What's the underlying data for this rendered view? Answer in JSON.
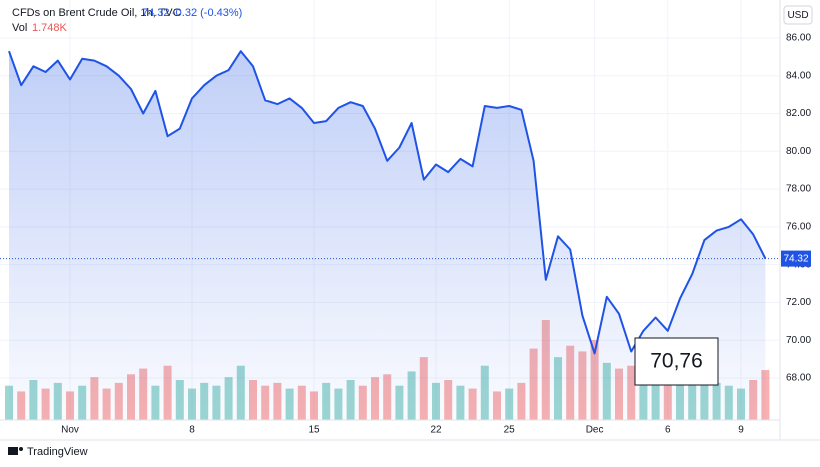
{
  "chart_data": {
    "type": "area",
    "title": "CFDs on Brent Crude Oil, 1h, TVC",
    "last_price": "74.32",
    "change": "-0.32 (-0.43%)",
    "currency": "USD",
    "annotation": "70,76",
    "brand": "TradingView",
    "categories": [
      null,
      null,
      null,
      null,
      null,
      "Nov",
      null,
      null,
      null,
      null,
      null,
      null,
      null,
      null,
      null,
      "8",
      null,
      null,
      null,
      null,
      null,
      null,
      null,
      null,
      null,
      "15",
      null,
      null,
      null,
      null,
      null,
      null,
      null,
      null,
      null,
      "22",
      null,
      null,
      null,
      null,
      null,
      "25",
      null,
      null,
      null,
      null,
      null,
      null,
      "Dec",
      null,
      null,
      null,
      null,
      null,
      "6",
      null,
      null,
      null,
      null,
      null,
      "9",
      null,
      null
    ],
    "series": [
      {
        "name": "Brent",
        "color": "#1e53e5",
        "values": [
          85.3,
          83.5,
          84.5,
          84.2,
          84.8,
          83.8,
          84.9,
          84.8,
          84.5,
          84.0,
          83.3,
          82.0,
          83.2,
          80.8,
          81.2,
          82.8,
          83.5,
          84.0,
          84.3,
          85.3,
          84.5,
          82.7,
          82.5,
          82.8,
          82.3,
          81.5,
          81.6,
          82.3,
          82.6,
          82.4,
          81.2,
          79.5,
          80.2,
          81.5,
          78.5,
          79.3,
          78.9,
          79.6,
          79.2,
          82.4,
          82.3,
          82.4,
          82.2,
          79.5,
          73.2,
          75.5,
          74.8,
          71.3,
          69.3,
          72.3,
          71.4,
          69.4,
          70.5,
          71.2,
          70.5,
          72.2,
          73.5,
          75.3,
          75.8,
          76.0,
          76.4,
          75.6,
          74.32
        ]
      }
    ],
    "volume": {
      "name": "Vol",
      "last_label": "1.748K",
      "up_color": "#26a69a",
      "down_color": "#ef5350",
      "values": [
        1.2,
        1.0,
        1.4,
        1.1,
        1.3,
        1.0,
        1.2,
        1.5,
        1.1,
        1.3,
        1.6,
        1.8,
        1.2,
        1.9,
        1.4,
        1.1,
        1.3,
        1.2,
        1.5,
        1.9,
        1.4,
        1.2,
        1.3,
        1.1,
        1.2,
        1.0,
        1.3,
        1.1,
        1.4,
        1.2,
        1.5,
        1.6,
        1.2,
        1.7,
        2.2,
        1.3,
        1.4,
        1.2,
        1.1,
        1.9,
        1.0,
        1.1,
        1.3,
        2.5,
        3.5,
        2.2,
        2.6,
        2.4,
        2.8,
        2.0,
        1.8,
        1.9,
        1.6,
        1.5,
        1.3,
        1.7,
        1.4,
        1.5,
        1.3,
        1.2,
        1.1,
        1.4,
        1.748
      ]
    },
    "ylim": [
      65.67,
      88.01
    ],
    "yticks": [
      {
        "value": 68,
        "label": "68.00"
      },
      {
        "value": 70,
        "label": "70.00"
      },
      {
        "value": 72,
        "label": "72.00"
      },
      {
        "value": 74,
        "label": "74.00"
      },
      {
        "value": 76,
        "label": "76.00"
      },
      {
        "value": 78,
        "label": "78.00"
      },
      {
        "value": 80,
        "label": "80.00"
      },
      {
        "value": 82,
        "label": "82.00"
      },
      {
        "value": 84,
        "label": "84.00"
      },
      {
        "value": 86,
        "label": "86.00"
      }
    ],
    "grid": true
  }
}
